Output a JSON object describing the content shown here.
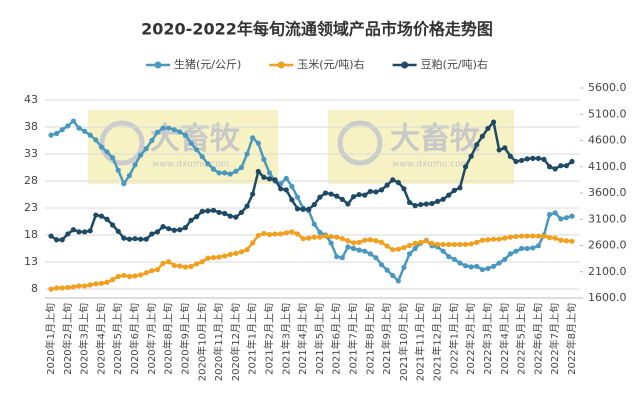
{
  "chart_data": {
    "type": "line",
    "title": "2020-2022年每旬流通领域产品市场价格走势图",
    "watermark": "大畜牧",
    "watermark_url": "www.dxumu.com",
    "categories": [
      "2020年1月上旬",
      null,
      null,
      "2020年2月上旬",
      null,
      null,
      "2020年3月上旬",
      null,
      null,
      "2020年4月上旬",
      null,
      null,
      "2020年5月上旬",
      null,
      null,
      "2020年6月上旬",
      null,
      null,
      "2020年7月上旬",
      null,
      null,
      "2020年8月上旬",
      null,
      null,
      "2020年9月上旬",
      null,
      null,
      "2020年10月上旬",
      null,
      null,
      "2020年11月上旬",
      null,
      null,
      "2020年12月上旬",
      null,
      null,
      "2021年1月上旬",
      null,
      null,
      "2021年2月上旬",
      null,
      null,
      "2021年3月上旬",
      null,
      null,
      "2021年4月上旬",
      null,
      null,
      "2021年5月上旬",
      null,
      null,
      "2021年6月上旬",
      null,
      null,
      "2021年7月上旬",
      null,
      null,
      "2021年8月上旬",
      null,
      null,
      "2021年9月上旬",
      null,
      null,
      "2021年10月上旬",
      null,
      null,
      "2021年11月上旬",
      null,
      null,
      "2021年12月上旬",
      null,
      null,
      "2022年1月上旬",
      null,
      null,
      "2022年2月上旬",
      null,
      null,
      "2022年3月上旬",
      null,
      null,
      "2022年4月上旬",
      null,
      null,
      "2022年5月上旬",
      null,
      null,
      "2022年6月上旬",
      null,
      null,
      "2022年7月上旬",
      null,
      null,
      "2022年8月上旬"
    ],
    "series": [
      {
        "name": "生猪(元/公斤)",
        "color": "#4a98c0",
        "values": [
          36.5,
          36.8,
          37.5,
          38.2,
          39.1,
          37.8,
          37.2,
          36.5,
          35.6,
          34.3,
          33.4,
          32.3,
          30,
          27.5,
          29,
          31,
          32.8,
          34,
          35.5,
          37,
          37.8,
          37.8,
          37.5,
          37.1,
          36.5,
          35,
          33.8,
          32.5,
          31.2,
          30.2,
          29.5,
          29.5,
          29.3,
          29.8,
          30.5,
          33,
          36,
          35,
          32,
          29.5,
          28,
          27.5,
          28.5,
          27,
          25,
          23,
          22.5,
          20,
          18.5,
          18,
          16.5,
          14,
          13.8,
          15.8,
          15.5,
          15.2,
          15,
          14.5,
          13.8,
          12.5,
          11.5,
          10.5,
          9.5,
          12,
          14.5,
          15.5,
          16.5,
          17,
          16,
          15.8,
          15,
          14,
          13.5,
          12.8,
          12.3,
          12.1,
          12.2,
          11.6,
          11.8,
          12.2,
          12.8,
          13.5,
          14.5,
          15,
          15.5,
          15.5,
          15.6,
          16,
          18,
          21.8,
          22.1,
          21,
          21.2,
          21.5
        ]
      },
      {
        "name": "玉米(元/吨)右",
        "color": "#f0a01e",
        "axis": "y2",
        "values": [
          1770,
          1790,
          1790,
          1800,
          1810,
          1830,
          1830,
          1850,
          1870,
          1880,
          1900,
          1950,
          2010,
          2030,
          2010,
          2020,
          2040,
          2080,
          2120,
          2140,
          2260,
          2290,
          2220,
          2210,
          2190,
          2200,
          2250,
          2290,
          2360,
          2370,
          2380,
          2400,
          2430,
          2450,
          2480,
          2520,
          2650,
          2790,
          2830,
          2810,
          2820,
          2820,
          2840,
          2860,
          2820,
          2730,
          2740,
          2760,
          2760,
          2780,
          2770,
          2760,
          2730,
          2690,
          2650,
          2660,
          2700,
          2710,
          2690,
          2660,
          2590,
          2520,
          2530,
          2560,
          2600,
          2640,
          2660,
          2690,
          2640,
          2620,
          2620,
          2620,
          2620,
          2620,
          2620,
          2630,
          2660,
          2700,
          2710,
          2720,
          2720,
          2740,
          2760,
          2770,
          2780,
          2780,
          2780,
          2780,
          2780,
          2750,
          2740,
          2700,
          2690,
          2680
        ]
      },
      {
        "name": "豆粕(元/吨)右",
        "color": "#1e4a66",
        "axis": "y2",
        "values": [
          2780,
          2710,
          2710,
          2820,
          2900,
          2860,
          2860,
          2880,
          3180,
          3160,
          3100,
          2990,
          2870,
          2740,
          2720,
          2730,
          2720,
          2720,
          2820,
          2860,
          2960,
          2920,
          2890,
          2900,
          2940,
          3080,
          3150,
          3250,
          3260,
          3270,
          3230,
          3210,
          3160,
          3140,
          3230,
          3350,
          3580,
          4010,
          3900,
          3870,
          3850,
          3680,
          3660,
          3470,
          3300,
          3290,
          3290,
          3380,
          3520,
          3600,
          3580,
          3540,
          3480,
          3390,
          3530,
          3570,
          3560,
          3630,
          3620,
          3660,
          3750,
          3850,
          3800,
          3680,
          3420,
          3360,
          3380,
          3390,
          3400,
          3440,
          3480,
          3560,
          3650,
          3700,
          4100,
          4300,
          4520,
          4680,
          4830,
          4950,
          4420,
          4460,
          4300,
          4200,
          4220,
          4250,
          4260,
          4260,
          4240,
          4100,
          4060,
          4120,
          4120,
          4200
        ]
      }
    ],
    "ylim": [
      8,
      43
    ],
    "yticks": [
      8,
      13,
      18,
      23,
      28,
      33,
      38,
      43
    ],
    "y2lim": [
      1600,
      5600
    ],
    "y2ticks": [
      {
        "value": 1600,
        "label": "1600.0"
      },
      {
        "value": 2100,
        "label": "2100.0"
      },
      {
        "value": 2600,
        "label": "2600.0"
      },
      {
        "value": 3100,
        "label": "3100.0"
      },
      {
        "value": 3600,
        "label": "3600.0"
      },
      {
        "value": 4100,
        "label": "4100.0"
      },
      {
        "value": 4600,
        "label": "4600.0"
      },
      {
        "value": 5100,
        "label": "5100.0"
      },
      {
        "value": 5600,
        "label": "5600.0"
      }
    ],
    "grid": true,
    "legend": "top"
  }
}
